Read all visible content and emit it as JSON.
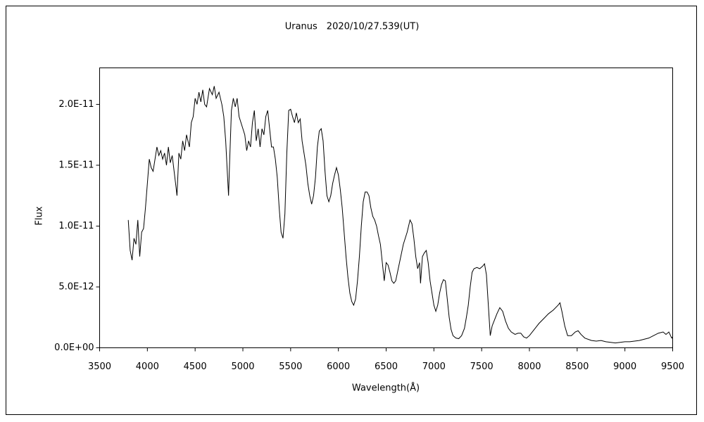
{
  "chart_data": {
    "type": "line",
    "title": "Uranus　2020/10/27.539(UT)",
    "x_label": "Wavelength(Å)",
    "y_label": "Flux",
    "color": "#000000",
    "xlim": [
      3500,
      9500
    ],
    "xticks": [
      3500,
      4000,
      4500,
      5000,
      5500,
      6000,
      6500,
      7000,
      7500,
      8000,
      8500,
      9000,
      9500
    ],
    "ylim": [
      0,
      2.3e-11
    ],
    "yticks": [
      {
        "value": 0,
        "label": "0.0E+00"
      },
      {
        "value": 5e-12,
        "label": "5.0E-12"
      },
      {
        "value": 1e-11,
        "label": "1.0E-11"
      },
      {
        "value": 1.5e-11,
        "label": "1.5E-11"
      },
      {
        "value": 2e-11,
        "label": "2.0E-11"
      }
    ],
    "grid": false,
    "x": [
      3800,
      3820,
      3840,
      3860,
      3880,
      3900,
      3920,
      3940,
      3960,
      3980,
      4000,
      4020,
      4040,
      4060,
      4080,
      4100,
      4120,
      4140,
      4160,
      4180,
      4200,
      4220,
      4240,
      4260,
      4280,
      4300,
      4310,
      4330,
      4350,
      4370,
      4390,
      4410,
      4440,
      4460,
      4480,
      4500,
      4520,
      4540,
      4560,
      4580,
      4600,
      4620,
      4650,
      4680,
      4700,
      4720,
      4750,
      4780,
      4800,
      4820,
      4840,
      4850,
      4860,
      4880,
      4900,
      4920,
      4940,
      4960,
      4980,
      5000,
      5020,
      5040,
      5060,
      5080,
      5100,
      5120,
      5140,
      5160,
      5180,
      5200,
      5220,
      5240,
      5260,
      5280,
      5300,
      5320,
      5340,
      5360,
      5380,
      5400,
      5420,
      5440,
      5460,
      5480,
      5500,
      5520,
      5540,
      5560,
      5580,
      5600,
      5620,
      5640,
      5660,
      5680,
      5700,
      5720,
      5740,
      5760,
      5780,
      5800,
      5820,
      5840,
      5860,
      5880,
      5900,
      5920,
      5940,
      5960,
      5980,
      6000,
      6020,
      6040,
      6060,
      6080,
      6100,
      6120,
      6140,
      6160,
      6180,
      6200,
      6220,
      6240,
      6260,
      6280,
      6300,
      6320,
      6340,
      6360,
      6380,
      6400,
      6420,
      6440,
      6460,
      6480,
      6500,
      6520,
      6540,
      6560,
      6580,
      6600,
      6640,
      6680,
      6720,
      6750,
      6770,
      6790,
      6810,
      6830,
      6850,
      6860,
      6880,
      6900,
      6920,
      6940,
      6960,
      6980,
      7000,
      7020,
      7040,
      7060,
      7080,
      7100,
      7120,
      7140,
      7160,
      7180,
      7200,
      7230,
      7260,
      7290,
      7320,
      7340,
      7360,
      7380,
      7400,
      7420,
      7450,
      7480,
      7510,
      7530,
      7550,
      7570,
      7590,
      7610,
      7630,
      7660,
      7690,
      7720,
      7750,
      7780,
      7810,
      7850,
      7880,
      7910,
      7940,
      7970,
      8000,
      8050,
      8100,
      8150,
      8200,
      8250,
      8300,
      8320,
      8340,
      8370,
      8400,
      8440,
      8480,
      8510,
      8540,
      8580,
      8650,
      8700,
      8750,
      8800,
      8850,
      8900,
      8950,
      9000,
      9050,
      9100,
      9150,
      9200,
      9250,
      9300,
      9350,
      9400,
      9430,
      9460,
      9490,
      9500
    ],
    "values": [
      1.05e-11,
      8e-12,
      7.2e-12,
      9e-12,
      8.5e-12,
      1.05e-11,
      7.5e-12,
      9.5e-12,
      9.8e-12,
      1.15e-11,
      1.35e-11,
      1.55e-11,
      1.48e-11,
      1.45e-11,
      1.55e-11,
      1.65e-11,
      1.58e-11,
      1.62e-11,
      1.55e-11,
      1.6e-11,
      1.5e-11,
      1.65e-11,
      1.52e-11,
      1.58e-11,
      1.45e-11,
      1.32e-11,
      1.25e-11,
      1.6e-11,
      1.55e-11,
      1.7e-11,
      1.62e-11,
      1.75e-11,
      1.65e-11,
      1.85e-11,
      1.9e-11,
      2.05e-11,
      2e-11,
      2.1e-11,
      2.02e-11,
      2.12e-11,
      2e-11,
      1.98e-11,
      2.13e-11,
      2.08e-11,
      2.15e-11,
      2.05e-11,
      2.1e-11,
      2e-11,
      1.9e-11,
      1.7e-11,
      1.4e-11,
      1.25e-11,
      1.5e-11,
      1.95e-11,
      2.05e-11,
      1.98e-11,
      2.05e-11,
      1.9e-11,
      1.85e-11,
      1.8e-11,
      1.75e-11,
      1.62e-11,
      1.7e-11,
      1.65e-11,
      1.85e-11,
      1.95e-11,
      1.7e-11,
      1.8e-11,
      1.65e-11,
      1.8e-11,
      1.75e-11,
      1.9e-11,
      1.95e-11,
      1.8e-11,
      1.65e-11,
      1.65e-11,
      1.55e-11,
      1.4e-11,
      1.15e-11,
      9.5e-12,
      9e-12,
      1.1e-11,
      1.6e-11,
      1.95e-11,
      1.96e-11,
      1.9e-11,
      1.85e-11,
      1.93e-11,
      1.85e-11,
      1.88e-11,
      1.7e-11,
      1.6e-11,
      1.5e-11,
      1.35e-11,
      1.25e-11,
      1.18e-11,
      1.25e-11,
      1.4e-11,
      1.65e-11,
      1.78e-11,
      1.8e-11,
      1.7e-11,
      1.45e-11,
      1.25e-11,
      1.2e-11,
      1.25e-11,
      1.35e-11,
      1.42e-11,
      1.48e-11,
      1.42e-11,
      1.3e-11,
      1.15e-11,
      9.5e-12,
      7.5e-12,
      5.8e-12,
      4.5e-12,
      3.8e-12,
      3.5e-12,
      4e-12,
      5.5e-12,
      7.5e-12,
      1e-11,
      1.2e-11,
      1.28e-11,
      1.28e-11,
      1.25e-11,
      1.15e-11,
      1.08e-11,
      1.05e-11,
      1e-11,
      9.2e-12,
      8.5e-12,
      7e-12,
      5.5e-12,
      7e-12,
      6.8e-12,
      6.2e-12,
      5.5e-12,
      5.3e-12,
      5.5e-12,
      7e-12,
      8.5e-12,
      9.5e-12,
      1.05e-11,
      1.02e-11,
      9e-12,
      7.5e-12,
      6.5e-12,
      7e-12,
      5.3e-12,
      7.5e-12,
      7.8e-12,
      8e-12,
      7e-12,
      5.5e-12,
      4.5e-12,
      3.5e-12,
      3e-12,
      3.5e-12,
      4.5e-12,
      5.2e-12,
      5.6e-12,
      5.5e-12,
      4e-12,
      2.5e-12,
      1.5e-12,
      1e-12,
      8e-13,
      7.5e-13,
      1e-12,
      1.6e-12,
      2.5e-12,
      3.5e-12,
      5e-12,
      6.2e-12,
      6.5e-12,
      6.6e-12,
      6.5e-12,
      6.7e-12,
      6.9e-12,
      6e-12,
      3.5e-12,
      1e-12,
      1.8e-12,
      2.2e-12,
      2.8e-12,
      3.3e-12,
      3e-12,
      2.2e-12,
      1.6e-12,
      1.3e-12,
      1.1e-12,
      1.2e-12,
      1.2e-12,
      9e-13,
      8e-13,
      1e-12,
      1.5e-12,
      2e-12,
      2.4e-12,
      2.8e-12,
      3.1e-12,
      3.5e-12,
      3.7e-12,
      3e-12,
      1.8e-12,
      1e-12,
      1e-12,
      1.3e-12,
      1.4e-12,
      1.1e-12,
      8e-13,
      6e-13,
      5.5e-13,
      6e-13,
      5e-13,
      4.5e-13,
      4e-13,
      4.5e-13,
      5e-13,
      5e-13,
      5.5e-13,
      6e-13,
      7e-13,
      8e-13,
      1e-12,
      1.2e-12,
      1.3e-12,
      1.1e-12,
      1.3e-12,
      8e-13,
      9e-13
    ]
  }
}
